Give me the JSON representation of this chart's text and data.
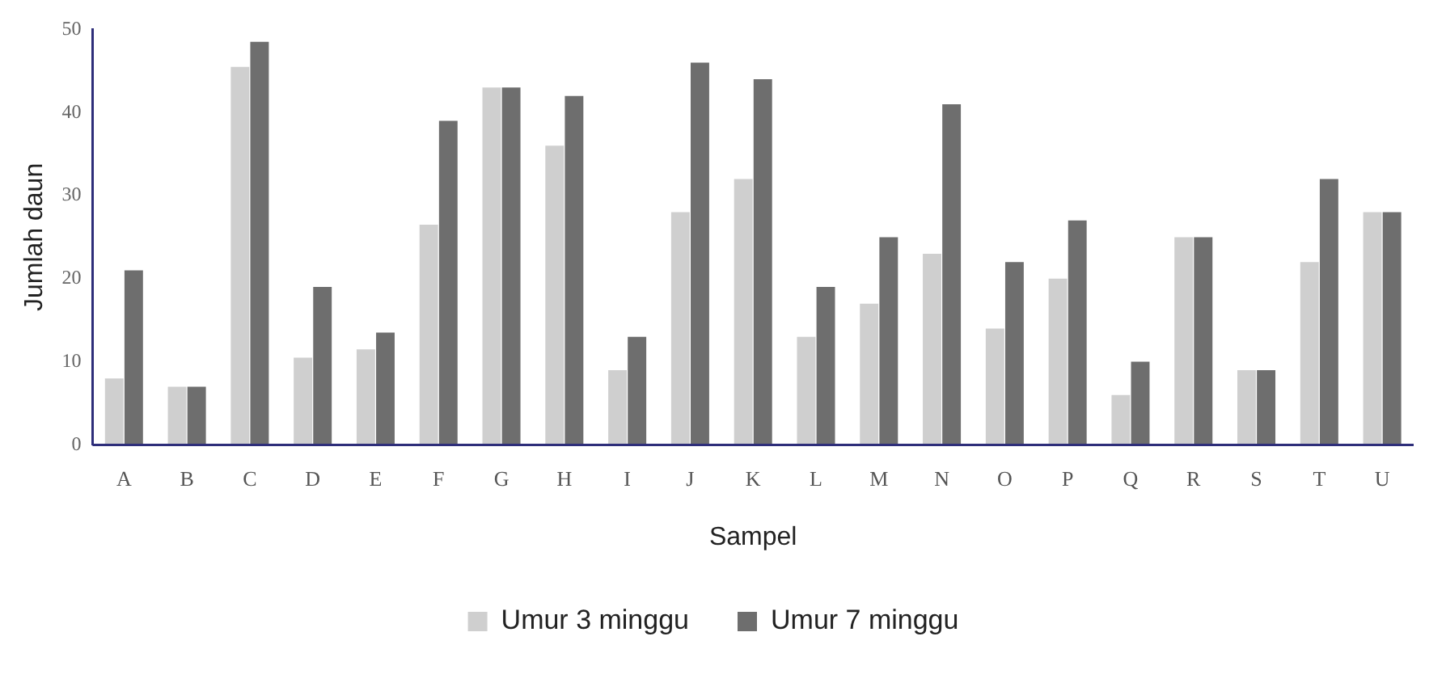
{
  "chart_data": {
    "type": "bar",
    "xlabel": "Sampel",
    "ylabel": "Jumlah daun",
    "categories": [
      "A",
      "B",
      "C",
      "D",
      "E",
      "F",
      "G",
      "H",
      "I",
      "J",
      "K",
      "L",
      "M",
      "N",
      "O",
      "P",
      "Q",
      "R",
      "S",
      "T",
      "U"
    ],
    "series": [
      {
        "name": "Umur 3 minggu",
        "color": "#cfcfcf",
        "values": [
          8,
          7,
          45.5,
          10.5,
          11.5,
          26.5,
          43,
          36,
          9,
          28,
          32,
          13,
          17,
          23,
          14,
          20,
          6,
          25,
          9,
          22,
          28
        ]
      },
      {
        "name": "Umur 7 minggu",
        "color": "#6e6e6e",
        "values": [
          21,
          7,
          48.5,
          19,
          13.5,
          39,
          43,
          42,
          13,
          46,
          44,
          19,
          25,
          41,
          22,
          27,
          10,
          25,
          9,
          32,
          28
        ]
      }
    ],
    "ylim": [
      0,
      50
    ],
    "yticks": [
      0,
      10,
      20,
      30,
      40,
      50
    ],
    "grid": false,
    "legend": "bottom"
  }
}
